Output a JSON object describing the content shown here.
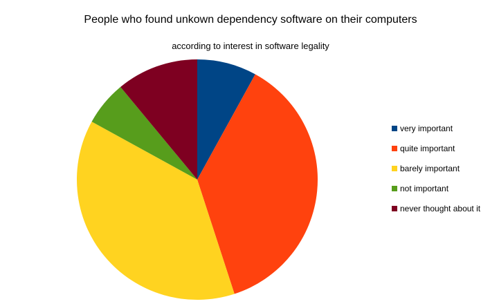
{
  "chart_data": {
    "type": "pie",
    "title": "People who found unkown dependency software on their computers",
    "subtitle": "according to interest in software legality",
    "slices": [
      {
        "label": "very important",
        "value": 8,
        "color": "#004586"
      },
      {
        "label": "quite important",
        "value": 37,
        "color": "#ff420e"
      },
      {
        "label": "barely important",
        "value": 38,
        "color": "#ffd320"
      },
      {
        "label": "not important",
        "value": 6,
        "color": "#579d1c"
      },
      {
        "label": "never thought about it",
        "value": 11,
        "color": "#7e0021"
      }
    ],
    "legend_position": "right"
  }
}
